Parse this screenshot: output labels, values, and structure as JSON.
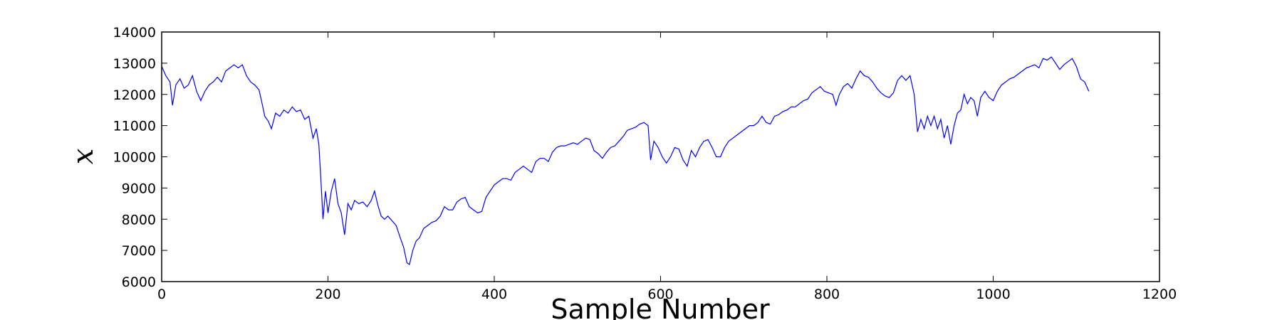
{
  "chart_data": {
    "type": "line",
    "xlabel": "Sample Number",
    "ylabel": "x",
    "color": "#0000ff",
    "xlim": [
      0,
      1200
    ],
    "xticks": [
      0,
      200,
      400,
      600,
      800,
      1000,
      1200
    ],
    "ylim": [
      6000,
      14000
    ],
    "yticks": [
      6000,
      7000,
      8000,
      9000,
      10000,
      11000,
      12000,
      13000,
      14000
    ],
    "x": [
      0,
      5,
      10,
      13,
      17,
      22,
      27,
      32,
      37,
      42,
      47,
      52,
      57,
      62,
      67,
      72,
      77,
      82,
      87,
      92,
      97,
      102,
      107,
      112,
      117,
      120,
      124,
      128,
      132,
      137,
      142,
      147,
      152,
      157,
      162,
      167,
      172,
      177,
      182,
      186,
      189,
      191,
      194,
      197,
      200,
      204,
      208,
      212,
      216,
      220,
      224,
      228,
      232,
      237,
      242,
      247,
      252,
      256,
      260,
      264,
      268,
      272,
      277,
      282,
      287,
      291,
      295,
      298,
      302,
      306,
      310,
      315,
      320,
      325,
      330,
      335,
      340,
      345,
      350,
      355,
      360,
      365,
      370,
      375,
      380,
      385,
      390,
      395,
      400,
      405,
      410,
      415,
      420,
      425,
      430,
      435,
      440,
      445,
      450,
      455,
      460,
      465,
      470,
      475,
      480,
      485,
      490,
      495,
      500,
      505,
      510,
      515,
      520,
      525,
      530,
      535,
      540,
      545,
      550,
      555,
      560,
      565,
      570,
      575,
      580,
      585,
      588,
      592,
      597,
      602,
      607,
      612,
      617,
      622,
      627,
      632,
      637,
      642,
      647,
      652,
      657,
      662,
      667,
      672,
      677,
      682,
      687,
      692,
      697,
      702,
      707,
      712,
      717,
      722,
      727,
      732,
      737,
      742,
      747,
      752,
      757,
      762,
      767,
      772,
      777,
      782,
      787,
      792,
      797,
      802,
      807,
      811,
      815,
      820,
      825,
      830,
      835,
      840,
      845,
      850,
      855,
      860,
      865,
      870,
      875,
      880,
      885,
      890,
      895,
      900,
      905,
      909,
      913,
      917,
      921,
      925,
      929,
      933,
      937,
      941,
      945,
      949,
      953,
      957,
      961,
      965,
      969,
      973,
      977,
      981,
      985,
      990,
      995,
      1000,
      1005,
      1010,
      1015,
      1020,
      1025,
      1030,
      1035,
      1040,
      1045,
      1050,
      1055,
      1060,
      1065,
      1070,
      1075,
      1080,
      1085,
      1090,
      1095,
      1100,
      1105,
      1110,
      1115
    ],
    "values": [
      12900,
      12600,
      12400,
      11650,
      12300,
      12500,
      12200,
      12300,
      12600,
      12100,
      11800,
      12100,
      12300,
      12400,
      12550,
      12400,
      12750,
      12850,
      12950,
      12850,
      12950,
      12600,
      12400,
      12300,
      12150,
      11800,
      11300,
      11150,
      10900,
      11400,
      11300,
      11500,
      11400,
      11600,
      11450,
      11500,
      11200,
      11300,
      10600,
      10900,
      10400,
      9500,
      8000,
      8900,
      8200,
      8900,
      9300,
      8500,
      8200,
      7500,
      8500,
      8300,
      8600,
      8500,
      8550,
      8400,
      8600,
      8900,
      8450,
      8100,
      8000,
      8100,
      7950,
      7800,
      7400,
      7100,
      6600,
      6550,
      7000,
      7300,
      7400,
      7700,
      7800,
      7900,
      7950,
      8100,
      8400,
      8300,
      8300,
      8550,
      8650,
      8700,
      8400,
      8300,
      8200,
      8250,
      8700,
      8900,
      9100,
      9200,
      9300,
      9300,
      9250,
      9500,
      9600,
      9700,
      9600,
      9500,
      9850,
      9950,
      9950,
      9850,
      10150,
      10300,
      10350,
      10350,
      10400,
      10450,
      10400,
      10500,
      10600,
      10550,
      10200,
      10100,
      9950,
      10150,
      10300,
      10350,
      10500,
      10650,
      10850,
      10900,
      10950,
      11050,
      11100,
      11000,
      9900,
      10500,
      10300,
      10000,
      9800,
      10000,
      10300,
      10250,
      9900,
      9700,
      10200,
      10000,
      10300,
      10500,
      10550,
      10300,
      10000,
      10000,
      10300,
      10500,
      10600,
      10700,
      10800,
      10900,
      11000,
      11000,
      11100,
      11300,
      11100,
      11050,
      11300,
      11350,
      11450,
      11500,
      11600,
      11600,
      11700,
      11800,
      11850,
      12050,
      12150,
      12250,
      12100,
      12050,
      12000,
      11650,
      12000,
      12250,
      12350,
      12200,
      12500,
      12750,
      12600,
      12550,
      12400,
      12200,
      12050,
      11950,
      11900,
      12050,
      12450,
      12600,
      12450,
      12600,
      12000,
      10800,
      11200,
      10900,
      11300,
      11000,
      11300,
      10900,
      11200,
      10600,
      11000,
      10400,
      11000,
      11400,
      11500,
      12000,
      11700,
      11900,
      11800,
      11300,
      11900,
      12100,
      11900,
      11800,
      12100,
      12300,
      12400,
      12500,
      12550,
      12650,
      12750,
      12850,
      12900,
      12950,
      12850,
      13150,
      13100,
      13200,
      13000,
      12800,
      12950,
      13050,
      13150,
      12900,
      12500,
      12400,
      12100
    ]
  }
}
